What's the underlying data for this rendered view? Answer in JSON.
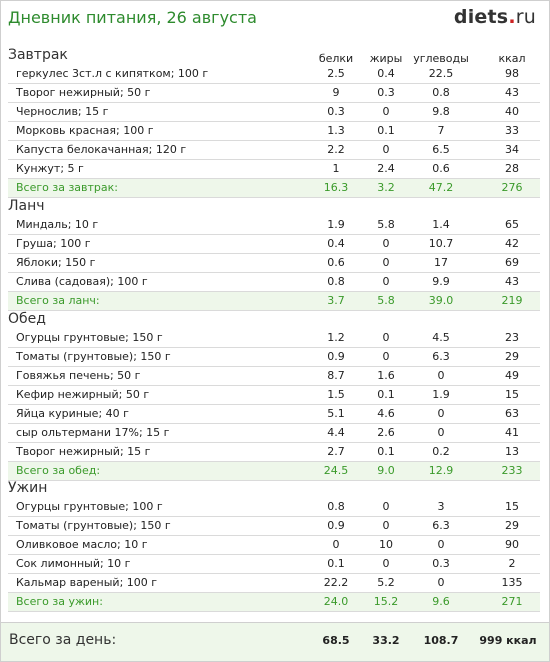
{
  "header": {
    "title": "Дневник питания, 26 августа",
    "logo_main": "diets",
    "logo_dot": ".",
    "logo_tld": "ru"
  },
  "columns": {
    "protein": "белки",
    "fat": "жиры",
    "carbs": "углеводы",
    "kcal": "ккал"
  },
  "sections": [
    {
      "title": "Завтрак",
      "rows": [
        {
          "name": "геркулес  3ст.л с кипятком; 100 г",
          "p": "2.5",
          "f": "0.4",
          "c": "22.5",
          "k": "98"
        },
        {
          "name": "Творог нежирный; 50 г",
          "p": "9",
          "f": "0.3",
          "c": "0.8",
          "k": "43"
        },
        {
          "name": "Чернослив; 15 г",
          "p": "0.3",
          "f": "0",
          "c": "9.8",
          "k": "40"
        },
        {
          "name": "Морковь красная; 100 г",
          "p": "1.3",
          "f": "0.1",
          "c": "7",
          "k": "33"
        },
        {
          "name": "Капуста белокачанная; 120 г",
          "p": "2.2",
          "f": "0",
          "c": "6.5",
          "k": "34"
        },
        {
          "name": "Кунжут; 5 г",
          "p": "1",
          "f": "2.4",
          "c": "0.6",
          "k": "28"
        }
      ],
      "total": {
        "name": "Всего за завтрак:",
        "p": "16.3",
        "f": "3.2",
        "c": "47.2",
        "k": "276"
      }
    },
    {
      "title": "Ланч",
      "rows": [
        {
          "name": "Миндаль; 10 г",
          "p": "1.9",
          "f": "5.8",
          "c": "1.4",
          "k": "65"
        },
        {
          "name": "Груша; 100 г",
          "p": "0.4",
          "f": "0",
          "c": "10.7",
          "k": "42"
        },
        {
          "name": "Яблоки; 150 г",
          "p": "0.6",
          "f": "0",
          "c": "17",
          "k": "69"
        },
        {
          "name": "Слива (садовая); 100 г",
          "p": "0.8",
          "f": "0",
          "c": "9.9",
          "k": "43"
        }
      ],
      "total": {
        "name": "Всего за ланч:",
        "p": "3.7",
        "f": "5.8",
        "c": "39.0",
        "k": "219"
      }
    },
    {
      "title": "Обед",
      "rows": [
        {
          "name": "Огурцы грунтовые; 150 г",
          "p": "1.2",
          "f": "0",
          "c": "4.5",
          "k": "23"
        },
        {
          "name": "Томаты (грунтовые); 150 г",
          "p": "0.9",
          "f": "0",
          "c": "6.3",
          "k": "29"
        },
        {
          "name": "Говяжья печень; 50 г",
          "p": "8.7",
          "f": "1.6",
          "c": "0",
          "k": "49"
        },
        {
          "name": "Кефир нежирный; 50 г",
          "p": "1.5",
          "f": "0.1",
          "c": "1.9",
          "k": "15"
        },
        {
          "name": "Яйца куриные; 40 г",
          "p": "5.1",
          "f": "4.6",
          "c": "0",
          "k": "63"
        },
        {
          "name": "сыр ольтермани 17%; 15 г",
          "p": "4.4",
          "f": "2.6",
          "c": "0",
          "k": "41"
        },
        {
          "name": "Творог нежирный; 15 г",
          "p": "2.7",
          "f": "0.1",
          "c": "0.2",
          "k": "13"
        }
      ],
      "total": {
        "name": "Всего за обед:",
        "p": "24.5",
        "f": "9.0",
        "c": "12.9",
        "k": "233"
      }
    },
    {
      "title": "Ужин",
      "rows": [
        {
          "name": "Огурцы грунтовые; 100 г",
          "p": "0.8",
          "f": "0",
          "c": "3",
          "k": "15"
        },
        {
          "name": "Томаты (грунтовые); 150 г",
          "p": "0.9",
          "f": "0",
          "c": "6.3",
          "k": "29"
        },
        {
          "name": "Оливковое масло; 10 г",
          "p": "0",
          "f": "10",
          "c": "0",
          "k": "90"
        },
        {
          "name": "Сок лимонный; 10 г",
          "p": "0.1",
          "f": "0",
          "c": "0.3",
          "k": "2"
        },
        {
          "name": "Кальмар вареный; 100 г",
          "p": "22.2",
          "f": "5.2",
          "c": "0",
          "k": "135"
        }
      ],
      "total": {
        "name": "Всего за ужин:",
        "p": "24.0",
        "f": "15.2",
        "c": "9.6",
        "k": "271"
      }
    }
  ],
  "grand_total": {
    "label": "Всего за день:",
    "p": "68.5",
    "f": "33.2",
    "c": "108.7",
    "k": "999 ккал"
  }
}
